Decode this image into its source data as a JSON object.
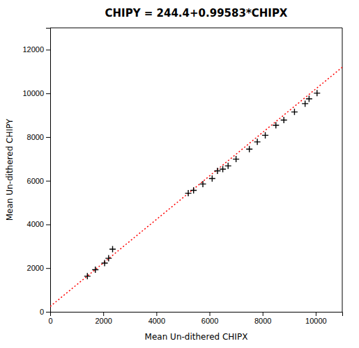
{
  "chart_data": {
    "type": "scatter",
    "title": "CHIPY = 244.4+0.99583*CHIPX",
    "xlabel": "Mean Un-dithered CHIPX",
    "ylabel": "Mean Un-dithered CHIPY",
    "series": [
      {
        "type": "line",
        "line_style": "dotted",
        "color": "red",
        "x": [
          0,
          11000
        ],
        "values": [
          244.4,
          11198.53
        ]
      },
      {
        "type": "scatter",
        "marker": "+",
        "color": "black",
        "x": [
          1400,
          1700,
          2050,
          2200,
          2350,
          5200,
          5400,
          5750,
          6100,
          6300,
          6500,
          6700,
          7000,
          7500,
          7800,
          8100,
          8500,
          8800,
          9200,
          9600,
          9750,
          10050
        ],
        "values": [
          1630,
          1930,
          2230,
          2450,
          2870,
          5430,
          5560,
          5850,
          6100,
          6450,
          6530,
          6680,
          6990,
          7450,
          7780,
          8080,
          8540,
          8780,
          9150,
          9530,
          9750,
          10010
        ]
      }
    ],
    "xlim": [
      0,
      11000
    ],
    "ylim": [
      0,
      13000
    ],
    "xticks": [
      0,
      2000,
      4000,
      6000,
      8000,
      10000
    ],
    "yticks": [
      0,
      2000,
      4000,
      6000,
      8000,
      10000,
      12000
    ],
    "grid": false
  }
}
